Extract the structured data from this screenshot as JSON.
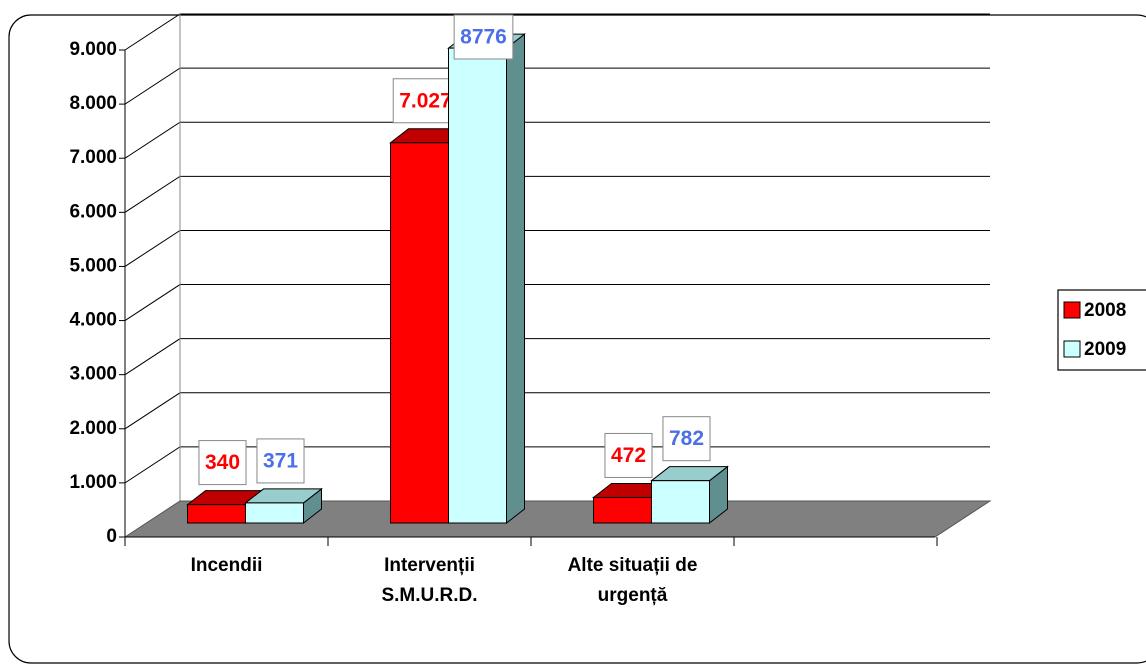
{
  "chart_data": {
    "type": "bar3d",
    "categories": [
      "Incendii",
      "Intervenții S.M.U.R.D.",
      "Alte situații de urgență"
    ],
    "series": [
      {
        "name": "2008",
        "color": "#ff0000",
        "label_color": "#ff0000",
        "values": [
          340,
          7027,
          472
        ],
        "value_labels": [
          "340",
          "7.027",
          "472"
        ]
      },
      {
        "name": "2009",
        "color": "#ccffff",
        "label_color": "#4a6fe8",
        "values": [
          371,
          8776,
          782
        ]
      }
    ],
    "ylim": [
      0,
      9000
    ],
    "yticks": [
      0,
      {
        "value": 1000,
        "label": "1.000"
      },
      {
        "value": 2000,
        "label": "2.000"
      },
      {
        "value": 3000,
        "label": "3.000"
      },
      {
        "value": 4000,
        "label": "4.000"
      },
      {
        "value": 5000,
        "label": "5.000"
      },
      {
        "value": 6000,
        "label": "6.000"
      },
      {
        "value": 7000,
        "label": "7.000"
      },
      {
        "value": 8000,
        "label": "8.000"
      },
      {
        "value": 9000,
        "label": "9.000"
      }
    ],
    "grid": true,
    "legend": "right"
  }
}
